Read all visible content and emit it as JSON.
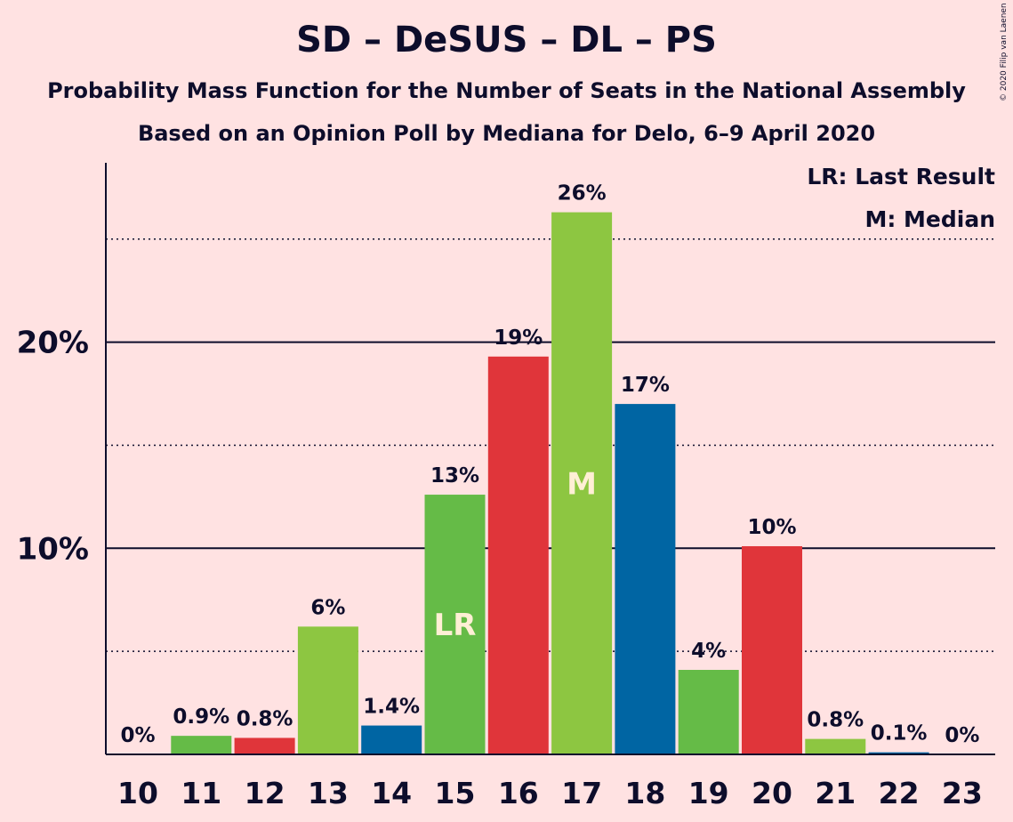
{
  "title": "SD – DeSUS – DL – PS",
  "subtitle": "Probability Mass Function for the Number of Seats in the National Assembly",
  "subtitle2": "Based on an Opinion Poll by Mediana for Delo, 6–9 April 2020",
  "copyright": "© 2020 Filip van Laenen",
  "legend": {
    "last_result": "LR: Last Result",
    "median": "M: Median"
  },
  "colors": {
    "background": "#FFE2E2",
    "green_light": "#8DC641",
    "green": "#65BB47",
    "red": "#E0353A",
    "blue": "#0065A3",
    "marker_text": "#FFEFD5"
  },
  "chart_data": {
    "type": "bar",
    "categories": [
      "10",
      "11",
      "12",
      "13",
      "14",
      "15",
      "16",
      "17",
      "18",
      "19",
      "20",
      "21",
      "22",
      "23"
    ],
    "values": [
      0,
      0.9,
      0.8,
      6.2,
      1.4,
      12.6,
      19.3,
      26.3,
      17.0,
      4.1,
      10.1,
      0.75,
      0.1,
      0
    ],
    "data_labels": [
      "0%",
      "0.9%",
      "0.8%",
      "6%",
      "1.4%",
      "13%",
      "19%",
      "26%",
      "17%",
      "4%",
      "10%",
      "0.8%",
      "0.1%",
      "0%"
    ],
    "bar_colors": [
      "#8DC641",
      "#65BB47",
      "#E0353A",
      "#8DC641",
      "#0065A3",
      "#65BB47",
      "#E0353A",
      "#8DC641",
      "#0065A3",
      "#65BB47",
      "#E0353A",
      "#8DC641",
      "#0065A3",
      "#65BB47"
    ],
    "markers": [
      {
        "category": "15",
        "label": "LR"
      },
      {
        "category": "17",
        "label": "M"
      }
    ],
    "ylim": [
      0,
      28.7
    ],
    "yticks": [
      10,
      20
    ],
    "ytick_labels": [
      "10%",
      "20%"
    ],
    "minor_gridlines": [
      5,
      15,
      25
    ],
    "grid": true,
    "legend_position": "top-right"
  }
}
